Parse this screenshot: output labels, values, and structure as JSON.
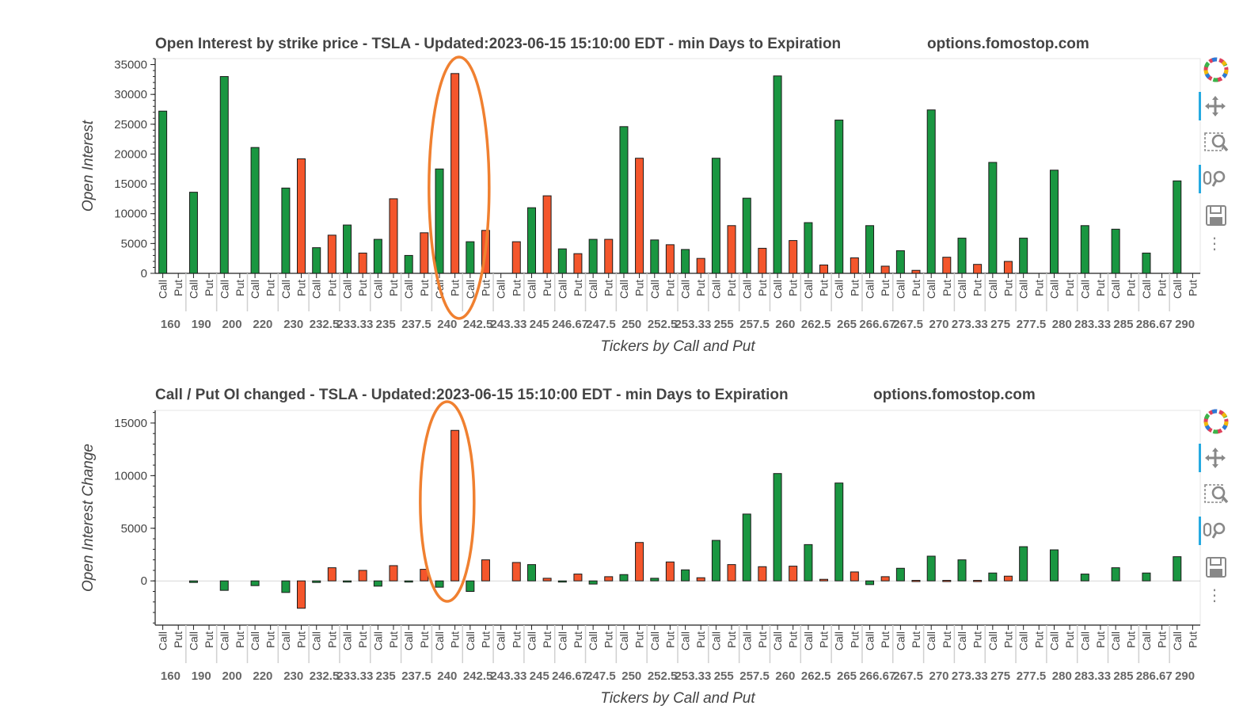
{
  "chart_data": [
    {
      "type": "bar",
      "title": "Open Interest by strike price - TSLA - Updated:2023-06-15 15:10:00 EDT - min Days to Expiration",
      "site": "options.fomostop.com",
      "xlabel": "Tickers by Call and Put",
      "ylabel": "Open Interest",
      "ylim": [
        0,
        36000
      ],
      "yticks": [
        0,
        5000,
        10000,
        15000,
        20000,
        25000,
        30000,
        35000
      ],
      "subcategories": [
        "Call",
        "Put"
      ],
      "categories": [
        "160",
        "190",
        "200",
        "220",
        "230",
        "232.5",
        "233.33",
        "235",
        "237.5",
        "240",
        "242.5",
        "243.33",
        "245",
        "246.67",
        "247.5",
        "250",
        "252.5",
        "253.33",
        "255",
        "257.5",
        "260",
        "262.5",
        "265",
        "266.67",
        "267.5",
        "270",
        "273.33",
        "275",
        "277.5",
        "280",
        "283.33",
        "285",
        "286.67",
        "290"
      ],
      "series": [
        {
          "name": "Call",
          "color": "#1a9641",
          "values": [
            27200,
            13600,
            33000,
            21100,
            14300,
            4300,
            8100,
            5700,
            3000,
            17500,
            5300,
            0,
            11000,
            4100,
            5700,
            24600,
            5600,
            4000,
            19300,
            12600,
            33100,
            8500,
            25700,
            8000,
            3800,
            27400,
            5900,
            18600,
            5900,
            17300,
            8000,
            7400,
            3400,
            15500
          ]
        },
        {
          "name": "Put",
          "color": "#f4562c",
          "values": [
            0,
            0,
            0,
            0,
            19200,
            6400,
            3400,
            12500,
            6800,
            33500,
            7200,
            5300,
            13000,
            3300,
            5700,
            19300,
            4800,
            2500,
            8000,
            4200,
            5500,
            1400,
            2600,
            1200,
            500,
            2700,
            1500,
            2000,
            0,
            0,
            0,
            0,
            0,
            0
          ]
        }
      ],
      "annotation": "orange ellipse around strike 240"
    },
    {
      "type": "bar",
      "title": "Call / Put OI changed - TSLA - Updated:2023-06-15 15:10:00 EDT - min Days to Expiration",
      "site": "options.fomostop.com",
      "xlabel": "Tickers by Call and Put",
      "ylabel": "Open Interest Change",
      "ylim": [
        -4200,
        16200
      ],
      "yticks": [
        0,
        5000,
        10000,
        15000
      ],
      "subcategories": [
        "Call",
        "Put"
      ],
      "categories": [
        "160",
        "190",
        "200",
        "220",
        "230",
        "232.5",
        "233.33",
        "235",
        "237.5",
        "240",
        "242.5",
        "243.33",
        "245",
        "246.67",
        "247.5",
        "250",
        "252.5",
        "253.33",
        "255",
        "257.5",
        "260",
        "262.5",
        "265",
        "266.67",
        "267.5",
        "270",
        "273.33",
        "275",
        "277.5",
        "280",
        "283.33",
        "285",
        "286.67",
        "290"
      ],
      "series": [
        {
          "name": "Call",
          "color": "#1a9641",
          "values": [
            0,
            -150,
            -900,
            -450,
            -1100,
            -150,
            -100,
            -500,
            -50,
            -600,
            -1000,
            0,
            1550,
            -50,
            -300,
            600,
            250,
            1050,
            3850,
            6350,
            10200,
            3450,
            9300,
            -350,
            1200,
            2350,
            2000,
            750,
            3250,
            2950,
            650,
            1250,
            750,
            2300
          ]
        },
        {
          "name": "Put",
          "color": "#f4562c",
          "values": [
            0,
            0,
            0,
            0,
            -2600,
            1250,
            1000,
            1450,
            1100,
            14300,
            2000,
            1750,
            250,
            650,
            400,
            3650,
            1800,
            300,
            1550,
            1350,
            1400,
            150,
            850,
            400,
            50,
            50,
            50,
            450,
            0,
            0,
            0,
            0,
            0,
            0
          ]
        }
      ],
      "annotation": "orange ellipse around strike 240"
    }
  ],
  "toolbar": {
    "tools": [
      "bokeh-logo-icon",
      "pan-icon",
      "box-zoom-icon",
      "wheel-zoom-icon",
      "save-icon"
    ],
    "more": "⋮"
  }
}
